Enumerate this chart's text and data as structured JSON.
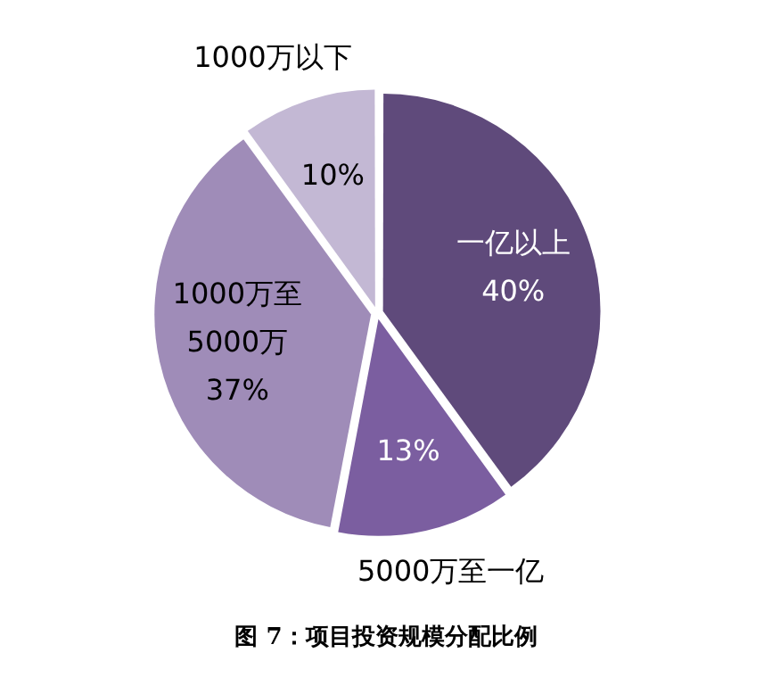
{
  "chart_data": {
    "type": "pie",
    "title": "图 7：项目投资规模分配比例",
    "categories": [
      "一亿以上",
      "5000万至一亿",
      "1000万至5000万",
      "1000万以下"
    ],
    "values": [
      40,
      13,
      37,
      10
    ],
    "value_labels": [
      "40%",
      "13%",
      "37%",
      "10%"
    ],
    "colors": [
      "#5f4a7b",
      "#7b5ea0",
      "#9f8cb8",
      "#c3b8d4"
    ],
    "legend": false
  }
}
